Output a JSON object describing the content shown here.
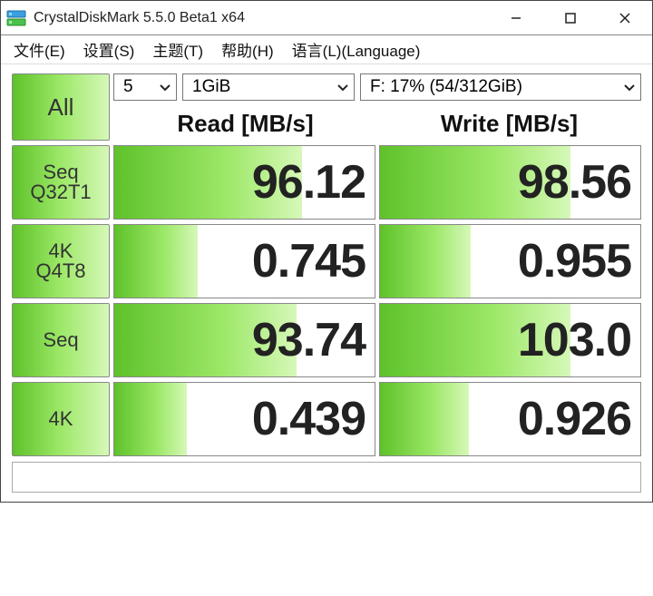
{
  "title": "CrystalDiskMark 5.5.0 Beta1 x64",
  "menu": {
    "file": "文件(E)",
    "settings": "设置(S)",
    "theme": "主题(T)",
    "help": "帮助(H)",
    "language": "语言(L)(Language)"
  },
  "controls": {
    "all_label": "All",
    "count": "5",
    "size": "1GiB",
    "drive": "F: 17% (54/312GiB)"
  },
  "headers": {
    "read": "Read [MB/s]",
    "write": "Write [MB/s]"
  },
  "tests": [
    {
      "label_line1": "Seq",
      "label_line2": "Q32T1",
      "read": "96.12",
      "read_fill_pct": 72,
      "write": "98.56",
      "write_fill_pct": 73
    },
    {
      "label_line1": "4K",
      "label_line2": "Q4T8",
      "read": "0.745",
      "read_fill_pct": 32,
      "write": "0.955",
      "write_fill_pct": 35
    },
    {
      "label_line1": "Seq",
      "label_line2": "",
      "read": "93.74",
      "read_fill_pct": 70,
      "write": "103.0",
      "write_fill_pct": 73
    },
    {
      "label_line1": "4K",
      "label_line2": "",
      "read": "0.439",
      "read_fill_pct": 28,
      "write": "0.926",
      "write_fill_pct": 34
    }
  ],
  "statusbar": "",
  "colors": {
    "green_start": "#5ec22a",
    "green_mid": "#9de868",
    "green_end": "#d6f8b8",
    "text_dark": "#222222",
    "border": "#888888",
    "bg": "#ffffff"
  }
}
